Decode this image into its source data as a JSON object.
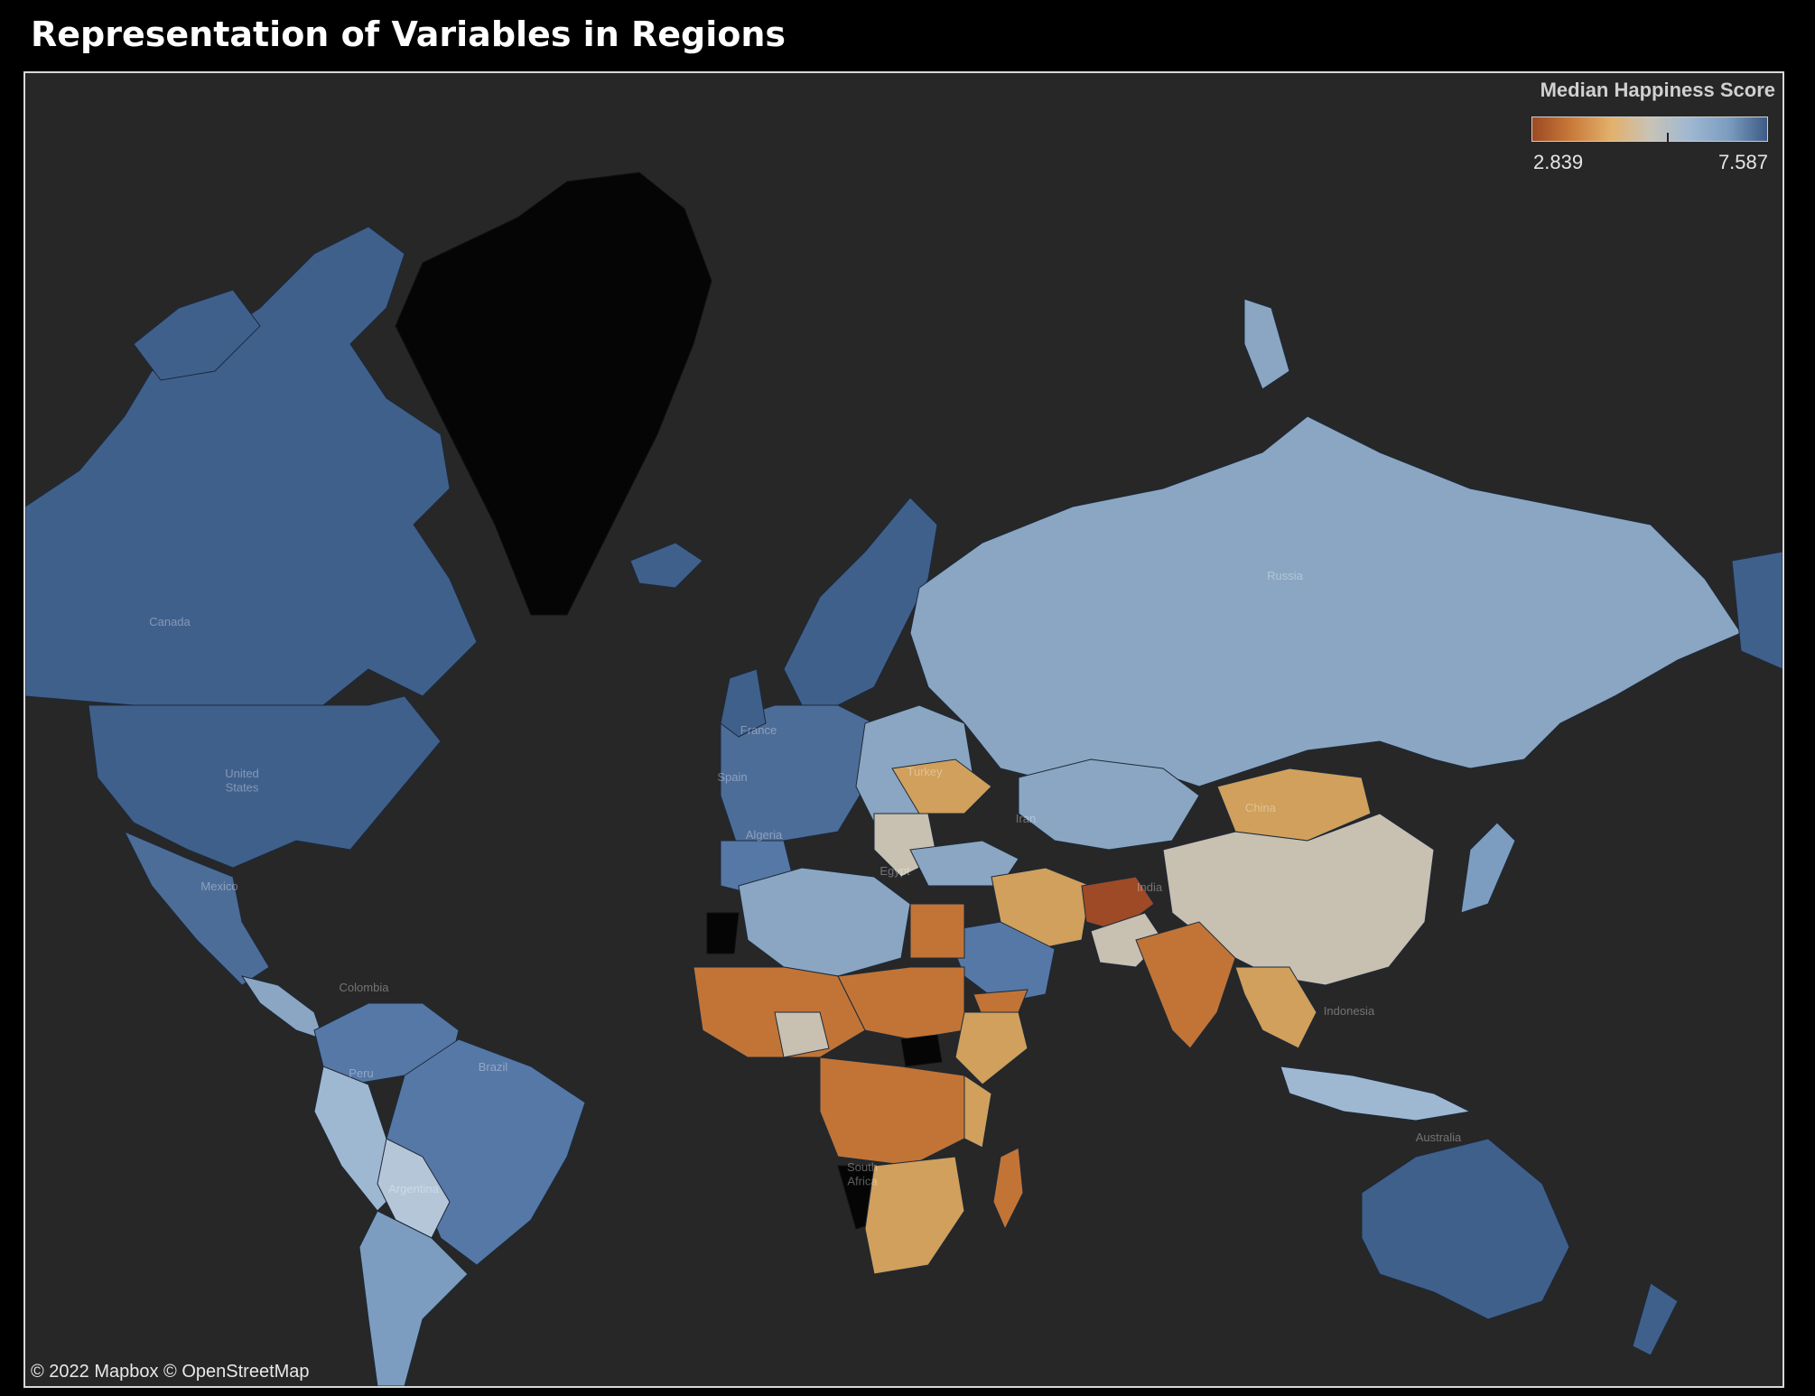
{
  "title": "Representation of Variables in Regions",
  "legend": {
    "title": "Median Happiness Score",
    "min": "2.839",
    "max": "7.587",
    "min_value": 2.839,
    "max_value": 7.587,
    "mid_marker_value": 5.375,
    "colors": [
      "#9c4a22",
      "#c97a3a",
      "#e2b06a",
      "#c9c3b6",
      "#9fb8d2",
      "#7d9dc0",
      "#3d5b86"
    ]
  },
  "attribution": "© 2022 Mapbox  © OpenStreetMap",
  "colors": {
    "background": "#000000",
    "map_background": "#272727",
    "no_data": "#0a0a0a",
    "very_high": "#40608c",
    "high": "#5678a6",
    "upper_mid": "#8aa6c2",
    "mid_light": "#c8c0b0",
    "mid_low": "#d0a05c",
    "low": "#c27436",
    "very_low": "#9e4a26"
  },
  "country_labels": {
    "canada": "Canada",
    "united_states": "United\nStates",
    "mexico": "Mexico",
    "colombia": "Colombia",
    "peru": "Peru",
    "brazil": "Brazil",
    "argentina": "Argentina",
    "france": "France",
    "spain": "Spain",
    "algeria": "Algeria",
    "egypt": "Egypt",
    "turkey": "Turkey",
    "iran": "Iran",
    "russia": "Russia",
    "china": "China",
    "india": "India",
    "indonesia": "Indonesia",
    "australia": "Australia",
    "south_africa": "South\nAfrica"
  }
}
